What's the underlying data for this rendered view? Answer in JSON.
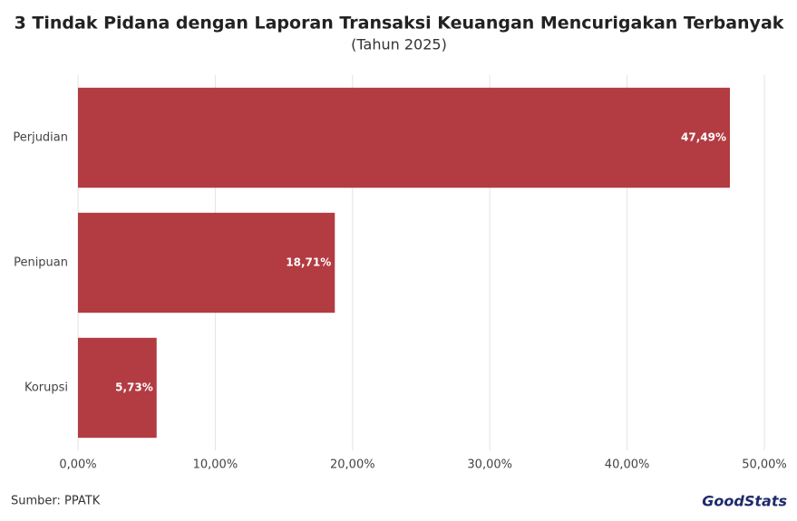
{
  "chart_data": {
    "type": "hbar",
    "title": "3 Tindak Pidana dengan Laporan Transaksi Keuangan Mencurigakan Terbanyak",
    "subtitle": "(Tahun 2025)",
    "categories": [
      "Perjudian",
      "Penipuan",
      "Korupsi"
    ],
    "values": [
      47.49,
      18.71,
      5.73
    ],
    "value_labels": [
      "47,49%",
      "18,71%",
      "5,73%"
    ],
    "color": "#b33b42",
    "xlim": [
      0,
      50
    ],
    "xticks": [
      {
        "value": 0,
        "label": "0,00%"
      },
      {
        "value": 10,
        "label": "10,00%"
      },
      {
        "value": 20,
        "label": "20,00%"
      },
      {
        "value": 30,
        "label": "30,00%"
      },
      {
        "value": 40,
        "label": "40,00%"
      },
      {
        "value": 50,
        "label": "50,00%"
      }
    ],
    "grid": true,
    "source": "Sumber: PPATK",
    "logo": "GoodStats"
  }
}
